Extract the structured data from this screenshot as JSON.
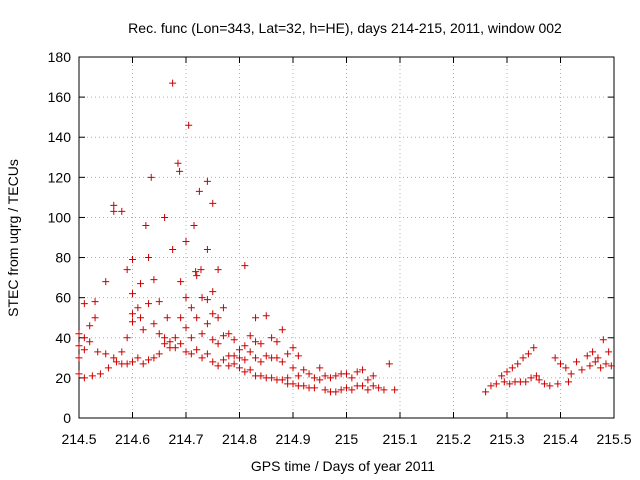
{
  "chart_data": {
    "type": "scatter",
    "title": "Rec. func (Lon=343, Lat=32, h=HE), days 214-215, 2011, window 002",
    "xlabel": "GPS time / Days of year 2011",
    "ylabel": "STEC from uqrg / TECUs",
    "xlim": [
      214.5,
      215.5
    ],
    "ylim": [
      0,
      180
    ],
    "xticks": [
      "214.5",
      "214.6",
      "214.7",
      "214.8",
      "214.9",
      "215",
      "215.1",
      "215.2",
      "215.3",
      "215.4",
      "215.5"
    ],
    "xtick_values": [
      214.5,
      214.6,
      214.7,
      214.8,
      214.9,
      215.0,
      215.1,
      215.2,
      215.3,
      215.4,
      215.5
    ],
    "yticks": [
      "0",
      "20",
      "40",
      "60",
      "80",
      "100",
      "120",
      "140",
      "160",
      "180"
    ],
    "ytick_values": [
      0,
      20,
      40,
      60,
      80,
      100,
      120,
      140,
      160,
      180
    ],
    "grid": true,
    "legend": "none",
    "marker": "plus",
    "colors": {
      "points": "#cc0000",
      "grid": "#b0b0b0",
      "axes": "#000000"
    },
    "points": [
      [
        214.5,
        42
      ],
      [
        214.5,
        36
      ],
      [
        214.5,
        30
      ],
      [
        214.5,
        22
      ],
      [
        214.51,
        57
      ],
      [
        214.51,
        40
      ],
      [
        214.51,
        34
      ],
      [
        214.51,
        20
      ],
      [
        214.52,
        46
      ],
      [
        214.52,
        38
      ],
      [
        214.525,
        21
      ],
      [
        214.53,
        58
      ],
      [
        214.53,
        50
      ],
      [
        214.535,
        33
      ],
      [
        214.54,
        22
      ],
      [
        214.55,
        68
      ],
      [
        214.55,
        32
      ],
      [
        214.555,
        25
      ],
      [
        214.565,
        106
      ],
      [
        214.565,
        103
      ],
      [
        214.565,
        30
      ],
      [
        214.57,
        28
      ],
      [
        214.58,
        103
      ],
      [
        214.58,
        33
      ],
      [
        214.58,
        27
      ],
      [
        214.59,
        74
      ],
      [
        214.59,
        40
      ],
      [
        214.59,
        27
      ],
      [
        214.6,
        79
      ],
      [
        214.6,
        62
      ],
      [
        214.6,
        52
      ],
      [
        214.6,
        48
      ],
      [
        214.6,
        28
      ],
      [
        214.61,
        55
      ],
      [
        214.61,
        30
      ],
      [
        214.615,
        67
      ],
      [
        214.615,
        50
      ],
      [
        214.62,
        44
      ],
      [
        214.62,
        27
      ],
      [
        214.625,
        96
      ],
      [
        214.63,
        80
      ],
      [
        214.63,
        57
      ],
      [
        214.63,
        29
      ],
      [
        214.635,
        120
      ],
      [
        214.64,
        69
      ],
      [
        214.64,
        47
      ],
      [
        214.64,
        30
      ],
      [
        214.65,
        58
      ],
      [
        214.65,
        42
      ],
      [
        214.65,
        32
      ],
      [
        214.66,
        100
      ],
      [
        214.66,
        40
      ],
      [
        214.66,
        37
      ],
      [
        214.665,
        50
      ],
      [
        214.67,
        38
      ],
      [
        214.67,
        35
      ],
      [
        214.675,
        84
      ],
      [
        214.675,
        167
      ],
      [
        214.68,
        40
      ],
      [
        214.68,
        35
      ],
      [
        214.685,
        127
      ],
      [
        214.688,
        123
      ],
      [
        214.69,
        68
      ],
      [
        214.69,
        50
      ],
      [
        214.69,
        37
      ],
      [
        214.7,
        88
      ],
      [
        214.7,
        60
      ],
      [
        214.7,
        45
      ],
      [
        214.7,
        33
      ],
      [
        214.705,
        146
      ],
      [
        214.71,
        55
      ],
      [
        214.71,
        40
      ],
      [
        214.71,
        32
      ],
      [
        214.715,
        96
      ],
      [
        214.718,
        73
      ],
      [
        214.72,
        71
      ],
      [
        214.72,
        50
      ],
      [
        214.72,
        34
      ],
      [
        214.725,
        113
      ],
      [
        214.728,
        74
      ],
      [
        214.73,
        60
      ],
      [
        214.73,
        42
      ],
      [
        214.73,
        30
      ],
      [
        214.74,
        118
      ],
      [
        214.74,
        84
      ],
      [
        214.74,
        59
      ],
      [
        214.74,
        47
      ],
      [
        214.74,
        32
      ],
      [
        214.75,
        107
      ],
      [
        214.75,
        63
      ],
      [
        214.75,
        52
      ],
      [
        214.75,
        39
      ],
      [
        214.75,
        28
      ],
      [
        214.76,
        74
      ],
      [
        214.76,
        50
      ],
      [
        214.76,
        37
      ],
      [
        214.76,
        26
      ],
      [
        214.77,
        55
      ],
      [
        214.77,
        41
      ],
      [
        214.77,
        29
      ],
      [
        214.78,
        42
      ],
      [
        214.78,
        31
      ],
      [
        214.78,
        26
      ],
      [
        214.79,
        39
      ],
      [
        214.79,
        31
      ],
      [
        214.79,
        27
      ],
      [
        214.8,
        34
      ],
      [
        214.8,
        30
      ],
      [
        214.8,
        25
      ],
      [
        214.81,
        76
      ],
      [
        214.81,
        36
      ],
      [
        214.81,
        29
      ],
      [
        214.81,
        23
      ],
      [
        214.82,
        41
      ],
      [
        214.82,
        33
      ],
      [
        214.82,
        24
      ],
      [
        214.83,
        50
      ],
      [
        214.83,
        38
      ],
      [
        214.83,
        30
      ],
      [
        214.83,
        21
      ],
      [
        214.84,
        37
      ],
      [
        214.84,
        28
      ],
      [
        214.84,
        21
      ],
      [
        214.85,
        51
      ],
      [
        214.85,
        31
      ],
      [
        214.85,
        20
      ],
      [
        214.86,
        40
      ],
      [
        214.86,
        30
      ],
      [
        214.86,
        20
      ],
      [
        214.87,
        38
      ],
      [
        214.87,
        30
      ],
      [
        214.87,
        19
      ],
      [
        214.88,
        44
      ],
      [
        214.88,
        28
      ],
      [
        214.88,
        19
      ],
      [
        214.89,
        32
      ],
      [
        214.89,
        20
      ],
      [
        214.89,
        17
      ],
      [
        214.9,
        35
      ],
      [
        214.9,
        25
      ],
      [
        214.9,
        17
      ],
      [
        214.91,
        31
      ],
      [
        214.91,
        21
      ],
      [
        214.91,
        16
      ],
      [
        214.92,
        24
      ],
      [
        214.92,
        16
      ],
      [
        214.93,
        22
      ],
      [
        214.93,
        15
      ],
      [
        214.94,
        20
      ],
      [
        214.94,
        15
      ],
      [
        214.95,
        25
      ],
      [
        214.95,
        19
      ],
      [
        214.96,
        21
      ],
      [
        214.96,
        14
      ],
      [
        214.97,
        20
      ],
      [
        214.97,
        13
      ],
      [
        214.98,
        21
      ],
      [
        214.98,
        13
      ],
      [
        214.99,
        22
      ],
      [
        214.99,
        14
      ],
      [
        215.0,
        22
      ],
      [
        215.0,
        15
      ],
      [
        215.01,
        20
      ],
      [
        215.01,
        14
      ],
      [
        215.02,
        23
      ],
      [
        215.02,
        16
      ],
      [
        215.03,
        24
      ],
      [
        215.03,
        16
      ],
      [
        215.04,
        19
      ],
      [
        215.04,
        14
      ],
      [
        215.05,
        21
      ],
      [
        215.05,
        16
      ],
      [
        215.06,
        15
      ],
      [
        215.07,
        14
      ],
      [
        215.08,
        27
      ],
      [
        215.09,
        14
      ],
      [
        215.26,
        13
      ],
      [
        215.27,
        16
      ],
      [
        215.28,
        17
      ],
      [
        215.29,
        21
      ],
      [
        215.295,
        18
      ],
      [
        215.3,
        23
      ],
      [
        215.305,
        17
      ],
      [
        215.31,
        25
      ],
      [
        215.315,
        18
      ],
      [
        215.32,
        27
      ],
      [
        215.325,
        18
      ],
      [
        215.33,
        30
      ],
      [
        215.335,
        18
      ],
      [
        215.34,
        32
      ],
      [
        215.345,
        20
      ],
      [
        215.35,
        35
      ],
      [
        215.355,
        21
      ],
      [
        215.36,
        19
      ],
      [
        215.37,
        17
      ],
      [
        215.38,
        16
      ],
      [
        215.39,
        30
      ],
      [
        215.395,
        17
      ],
      [
        215.4,
        27
      ],
      [
        215.41,
        25
      ],
      [
        215.415,
        18
      ],
      [
        215.42,
        22
      ],
      [
        215.43,
        28
      ],
      [
        215.44,
        24
      ],
      [
        215.45,
        31
      ],
      [
        215.455,
        26
      ],
      [
        215.46,
        33
      ],
      [
        215.465,
        28
      ],
      [
        215.47,
        30
      ],
      [
        215.475,
        25
      ],
      [
        215.48,
        39
      ],
      [
        215.485,
        27
      ],
      [
        215.49,
        33
      ],
      [
        215.495,
        26
      ]
    ]
  }
}
